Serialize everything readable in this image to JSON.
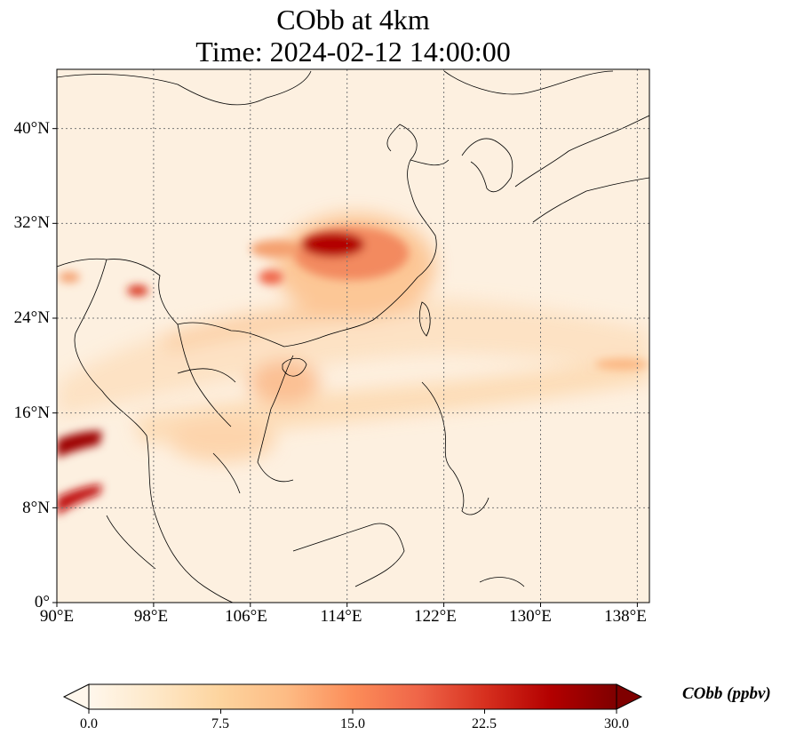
{
  "title": {
    "line1": "CObb at 4km",
    "line2": "Time: 2024-02-12 14:00:00"
  },
  "map": {
    "lon_range": [
      90,
      139
    ],
    "lat_range": [
      0,
      45
    ],
    "lat_ticks": [
      "0°",
      "8°N",
      "16°N",
      "24°N",
      "32°N",
      "40°N"
    ],
    "lon_ticks": [
      "90°E",
      "98°E",
      "106°E",
      "114°E",
      "122°E",
      "130°E",
      "138°E"
    ],
    "gridlines": true,
    "field": "CObb concentration",
    "hotspots": [
      {
        "region": "central-east China",
        "lon": 113,
        "lat": 29.5,
        "level": "high (>25 ppbv)"
      },
      {
        "region": "Myanmar/Andaman coast",
        "lon": 91,
        "lat": 13,
        "level": "high (>25 ppbv)"
      },
      {
        "region": "Bay of Bengal",
        "lon": 91.5,
        "lat": 9,
        "level": "high"
      },
      {
        "region": "northeast India",
        "lon": 96.5,
        "lat": 26.5,
        "level": "moderate"
      }
    ]
  },
  "colorbar": {
    "ticks": [
      "0.0",
      "7.5",
      "15.0",
      "22.5",
      "30.0"
    ],
    "range": [
      0,
      30
    ],
    "label": "CObb (ppbv)",
    "colormap": "OrRd",
    "extend": "both"
  },
  "colors": {
    "low": "#fff7ec",
    "mid": "#fc8d59",
    "high": "#7f0000"
  }
}
